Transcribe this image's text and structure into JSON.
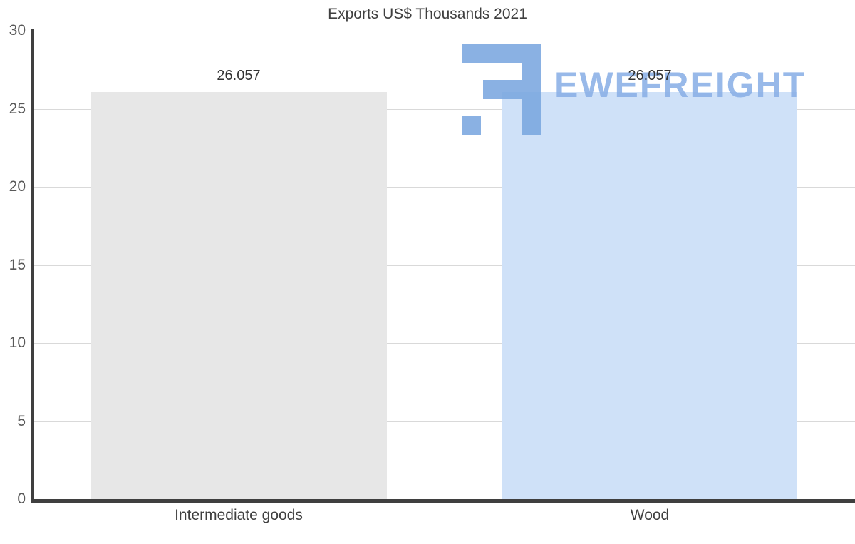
{
  "title": "Exports US$ Thousands 2021",
  "watermark": {
    "text": "EWEFREIGHT"
  },
  "chart_data": {
    "type": "bar",
    "title": "Exports US$ Thousands 2021",
    "categories": [
      "Intermediate goods",
      "Wood"
    ],
    "values": [
      26.057,
      26.057
    ],
    "value_labels": [
      "26.057",
      "26.057"
    ],
    "xlabel": "",
    "ylabel": "",
    "ylim": [
      0,
      30
    ],
    "yticks": [
      0,
      5,
      10,
      15,
      20,
      25,
      30
    ],
    "grid": true,
    "legend": "none",
    "bar_colors": [
      "#e7e7e7",
      "#cfe1f8"
    ]
  },
  "colors": {
    "axis": "#3f3f3f",
    "gridline": "#d9d9d9",
    "tick_label": "#595959",
    "title_text": "#3f3f3f",
    "data_label": "#333333",
    "watermark_blue": "#8ab0e6"
  }
}
